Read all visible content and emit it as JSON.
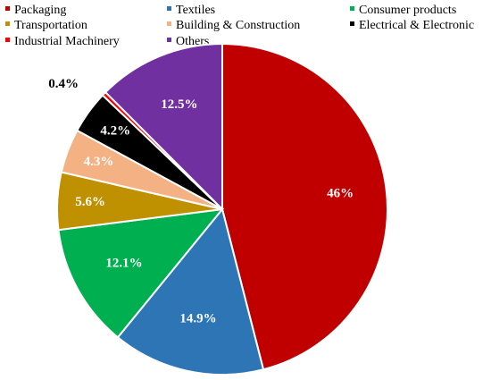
{
  "chart_data": {
    "type": "pie",
    "title": "",
    "slices": [
      {
        "label": "Packaging",
        "value": 46,
        "display": "46%",
        "color": "#C00000",
        "label_color": "#ffffff"
      },
      {
        "label": "Textiles",
        "value": 14.9,
        "display": "14.9%",
        "color": "#2E75B6",
        "label_color": "#ffffff"
      },
      {
        "label": "Consumer products",
        "value": 12.1,
        "display": "12.1%",
        "color": "#00B050",
        "label_color": "#ffffff"
      },
      {
        "label": "Transportation",
        "value": 5.6,
        "display": "5.6%",
        "color": "#BF9000",
        "label_color": "#ffffff"
      },
      {
        "label": "Building & Construction",
        "value": 4.3,
        "display": "4.3%",
        "color": "#F4B183",
        "label_color": "#ffffff"
      },
      {
        "label": "Electrical & Electronic",
        "value": 4.2,
        "display": "4.2%",
        "color": "#000000",
        "label_color": "#ffffff"
      },
      {
        "label": "Industrial Machinery",
        "value": 0.4,
        "display": "0.4%",
        "color": "#FF0000",
        "label_color": "#000000"
      },
      {
        "label": "Others",
        "value": 12.5,
        "display": "12.5%",
        "color": "#7030A0",
        "label_color": "#ffffff"
      }
    ],
    "legend_position": "top",
    "start_angle": "12 o'clock",
    "direction": "clockwise"
  }
}
